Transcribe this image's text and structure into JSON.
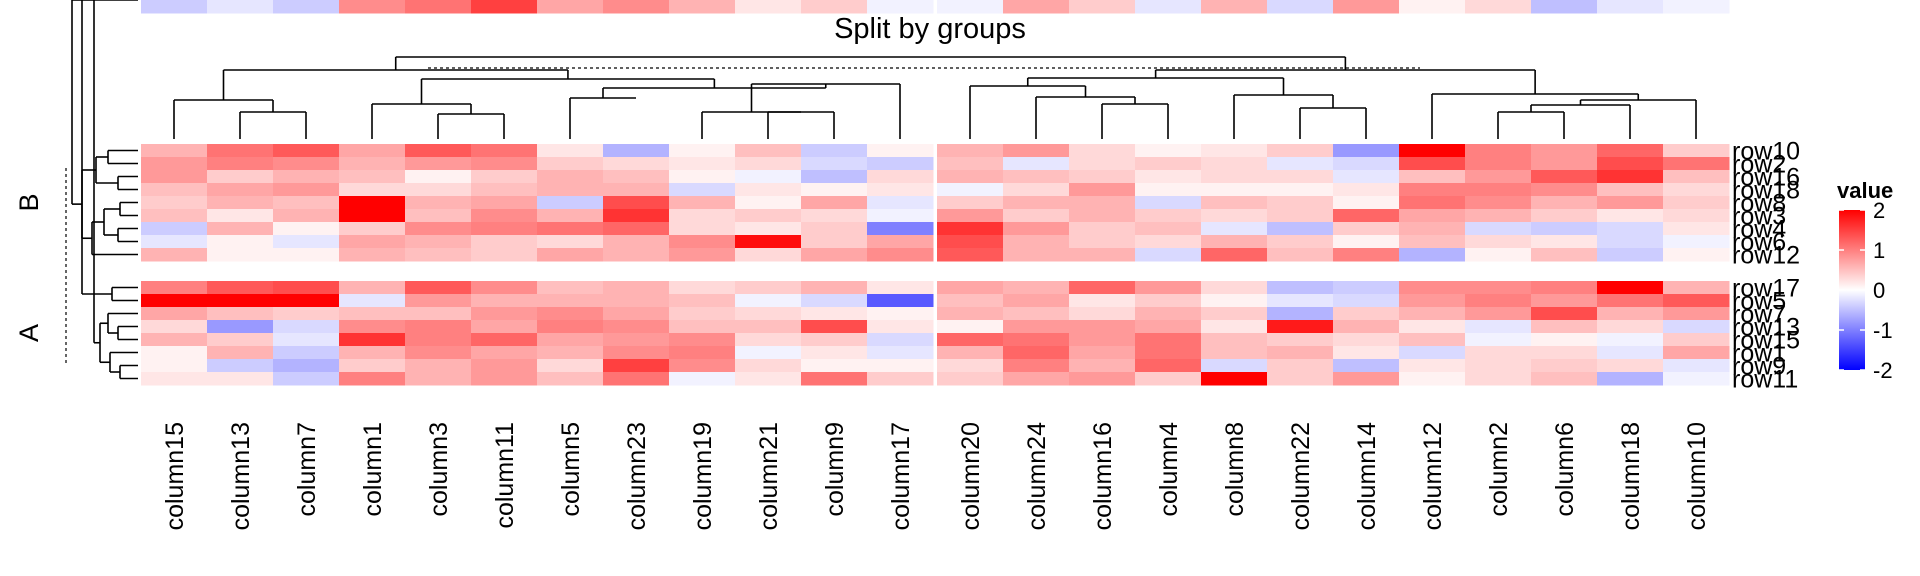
{
  "chart_data": {
    "type": "heatmap",
    "title": "Split by groups",
    "row_groups": [
      {
        "name": "B",
        "rows": [
          "row10",
          "row2",
          "row16",
          "row18",
          "row8",
          "row3",
          "row4",
          "row6",
          "row12"
        ]
      },
      {
        "name": "A",
        "rows": [
          "row17",
          "row5",
          "row7",
          "row13",
          "row15",
          "row1",
          "row9",
          "row11"
        ]
      }
    ],
    "column_groups": [
      [
        "column15",
        "column13",
        "column7",
        "column1",
        "column3",
        "column11",
        "column5",
        "column23",
        "column19",
        "column21",
        "column9",
        "column17"
      ],
      [
        "column20",
        "column24",
        "column16",
        "column4",
        "column8",
        "column22",
        "column14",
        "column12",
        "column2",
        "column6",
        "column18",
        "column10"
      ]
    ],
    "legend": {
      "title": "value",
      "ticks": [
        "2",
        "1",
        "0",
        "-1",
        "-2"
      ],
      "values": [
        2,
        1,
        0,
        -1,
        -2
      ],
      "colors": {
        "low": "#0000FF",
        "mid": "#FFFFFF",
        "high": "#FF0000"
      }
    },
    "values": [
      [
        0.6,
        1.1,
        1.3,
        0.7,
        1.3,
        1.1,
        0.2,
        -0.6,
        0.1,
        0.5,
        -0.4,
        0.1,
        0.6,
        0.8,
        0.3,
        0.1,
        0.2,
        0.4,
        -0.8,
        2.3,
        1.0,
        0.8,
        1.2,
        0.4
      ],
      [
        0.8,
        1.0,
        0.9,
        0.6,
        0.8,
        0.9,
        0.4,
        0.3,
        0.2,
        0.3,
        -0.3,
        -0.4,
        0.5,
        -0.2,
        0.3,
        0.4,
        0.3,
        -0.2,
        -0.3,
        1.4,
        1.0,
        0.8,
        1.4,
        1.1
      ],
      [
        0.8,
        0.4,
        0.6,
        0.5,
        0.1,
        0.4,
        0.6,
        0.5,
        0.1,
        -0.1,
        -0.5,
        0.3,
        0.6,
        0.5,
        0.4,
        0.2,
        0.3,
        0.3,
        -0.2,
        0.5,
        0.8,
        1.3,
        1.6,
        0.5
      ],
      [
        0.5,
        0.7,
        0.8,
        0.3,
        0.3,
        0.5,
        0.6,
        0.6,
        -0.3,
        0.2,
        0.1,
        0.2,
        -0.1,
        0.3,
        0.8,
        0.1,
        0.1,
        0.1,
        0.2,
        1.0,
        1.0,
        0.9,
        0.5,
        0.3
      ],
      [
        0.4,
        0.6,
        0.5,
        2.1,
        0.6,
        0.7,
        -0.4,
        1.4,
        0.6,
        0.1,
        0.7,
        -0.2,
        0.4,
        0.6,
        0.6,
        -0.3,
        0.5,
        0.4,
        0.1,
        1.1,
        0.9,
        0.6,
        0.8,
        0.4
      ],
      [
        0.5,
        0.2,
        0.6,
        2.3,
        0.5,
        0.9,
        0.6,
        1.6,
        0.3,
        0.4,
        0.3,
        -0.1,
        0.8,
        0.4,
        0.6,
        0.4,
        0.3,
        0.4,
        1.2,
        0.7,
        0.6,
        0.4,
        0.2,
        0.3
      ],
      [
        -0.4,
        0.6,
        0.1,
        0.4,
        0.9,
        1.0,
        1.1,
        1.2,
        0.3,
        0.2,
        0.4,
        -1.0,
        1.6,
        0.8,
        0.4,
        0.5,
        -0.2,
        -0.5,
        0.4,
        0.6,
        -0.3,
        -0.4,
        -0.3,
        0.2
      ],
      [
        -0.2,
        0.1,
        -0.2,
        0.7,
        0.6,
        0.4,
        0.3,
        0.6,
        0.9,
        1.9,
        0.4,
        0.7,
        1.4,
        0.6,
        0.4,
        0.3,
        0.6,
        0.4,
        0.1,
        0.5,
        0.3,
        0.2,
        -0.3,
        -0.1
      ],
      [
        0.6,
        0.1,
        0.1,
        0.6,
        0.5,
        0.4,
        0.7,
        0.6,
        0.8,
        0.3,
        0.7,
        0.9,
        1.3,
        0.6,
        0.6,
        -0.3,
        1.2,
        0.5,
        1.0,
        -0.6,
        0.1,
        0.5,
        -0.4,
        0.1
      ],
      [
        1.0,
        1.3,
        1.4,
        0.6,
        1.3,
        0.9,
        0.5,
        0.6,
        0.3,
        0.4,
        0.6,
        0.2,
        0.7,
        0.6,
        1.2,
        0.8,
        0.3,
        -0.5,
        -0.4,
        0.9,
        0.9,
        1.0,
        2.4,
        0.6
      ],
      [
        2.2,
        2.0,
        2.3,
        -0.2,
        0.8,
        0.6,
        0.6,
        0.6,
        0.5,
        -0.1,
        -0.3,
        -1.3,
        0.5,
        0.7,
        0.2,
        0.4,
        0.1,
        -0.2,
        -0.3,
        0.8,
        1.0,
        0.8,
        1.1,
        1.3
      ],
      [
        0.7,
        0.5,
        0.4,
        0.5,
        0.5,
        0.8,
        0.9,
        0.7,
        0.4,
        0.3,
        0.2,
        0.1,
        0.6,
        0.5,
        0.3,
        0.6,
        0.4,
        -0.6,
        0.4,
        0.6,
        0.8,
        1.4,
        0.6,
        0.8
      ],
      [
        0.3,
        -0.8,
        -0.3,
        0.9,
        1.0,
        0.7,
        1.0,
        0.9,
        0.5,
        0.5,
        1.4,
        0.2,
        0.1,
        0.8,
        0.8,
        0.7,
        0.2,
        1.8,
        0.6,
        0.2,
        -0.2,
        0.5,
        0.3,
        -0.3
      ],
      [
        0.6,
        0.4,
        -0.2,
        1.6,
        1.0,
        1.2,
        0.7,
        0.8,
        0.9,
        0.3,
        0.4,
        -0.3,
        1.2,
        1.1,
        0.8,
        1.1,
        0.5,
        0.4,
        0.3,
        0.5,
        -0.1,
        0.1,
        -0.1,
        0.4
      ],
      [
        0.1,
        0.6,
        -0.4,
        0.6,
        0.9,
        0.7,
        0.6,
        0.9,
        1.0,
        -0.1,
        0.2,
        -0.2,
        0.6,
        1.2,
        0.7,
        1.1,
        0.5,
        0.6,
        0.2,
        -0.3,
        0.3,
        0.3,
        -0.2,
        0.7
      ],
      [
        0.1,
        -0.4,
        -0.6,
        0.4,
        0.6,
        0.8,
        0.3,
        1.5,
        0.9,
        0.3,
        0.1,
        0.1,
        0.3,
        1.0,
        0.6,
        1.2,
        -0.3,
        0.4,
        -0.5,
        0.2,
        0.3,
        0.4,
        0.3,
        -0.2
      ],
      [
        0.2,
        0.2,
        -0.4,
        1.0,
        0.6,
        0.8,
        0.5,
        1.1,
        -0.1,
        0.2,
        1.1,
        0.4,
        0.4,
        0.7,
        0.8,
        0.4,
        2.0,
        0.4,
        0.8,
        0.1,
        0.3,
        0.5,
        -0.6,
        -0.1
      ],
      [
        -0.4,
        -0.2,
        -0.4,
        0.9,
        1.1,
        1.5,
        0.7,
        0.9,
        0.6,
        0.2,
        0.4,
        -0.1,
        -0.1,
        0.7,
        0.4,
        -0.2,
        0.6,
        -0.3,
        0.8,
        0.1,
        0.3,
        -0.5,
        -0.2,
        -0.1
      ]
    ]
  }
}
